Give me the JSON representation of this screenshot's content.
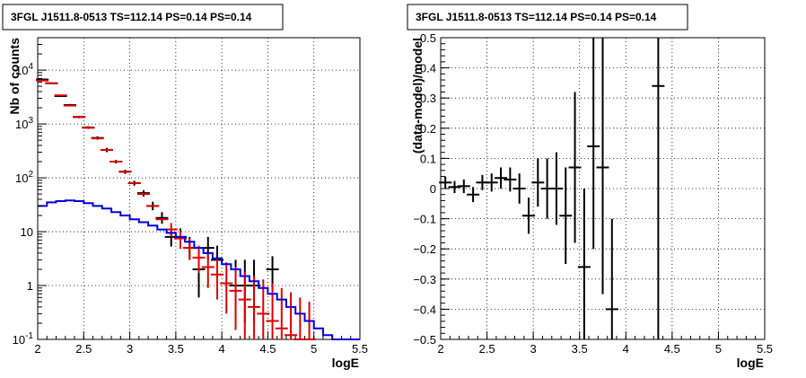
{
  "chart_data": [
    {
      "type": "scatter",
      "title": "3FGL J1511.8-0513 TS=112.14 PS=0.14 PS=0.14",
      "xlabel": "logE",
      "ylabel": "Nb of counts",
      "xlim": [
        2,
        5.5
      ],
      "ylim": [
        0.1,
        40000
      ],
      "ylog": true,
      "grid": true,
      "x_ticks": [
        "2",
        "2.5",
        "3",
        "3.5",
        "4",
        "4.5",
        "5",
        "5.5"
      ],
      "y_ticks": [
        {
          "value": 0.1,
          "label": "10",
          "exp": "-1"
        },
        {
          "value": 1,
          "label": "1",
          "exp": ""
        },
        {
          "value": 10,
          "label": "10",
          "exp": ""
        },
        {
          "value": 100,
          "label": "10",
          "exp": "2"
        },
        {
          "value": 1000,
          "label": "10",
          "exp": "3"
        },
        {
          "value": 10000,
          "label": "10",
          "exp": "4"
        }
      ],
      "series": [
        {
          "kind": "points",
          "color": "#000000",
          "points": [
            {
              "x": 2.05,
              "y": 6700,
              "lo": 6550,
              "hi": 6850
            },
            {
              "x": 2.15,
              "y": 5700,
              "lo": 5560,
              "hi": 5850
            },
            {
              "x": 2.25,
              "y": 3300,
              "lo": 3190,
              "hi": 3420
            },
            {
              "x": 2.35,
              "y": 2250,
              "lo": 2160,
              "hi": 2350
            },
            {
              "x": 2.45,
              "y": 1350,
              "lo": 1280,
              "hi": 1420
            },
            {
              "x": 2.55,
              "y": 860,
              "lo": 810,
              "hi": 910
            },
            {
              "x": 2.65,
              "y": 550,
              "lo": 510,
              "hi": 590
            },
            {
              "x": 2.75,
              "y": 330,
              "lo": 300,
              "hi": 360
            },
            {
              "x": 2.85,
              "y": 200,
              "lo": 185,
              "hi": 215
            },
            {
              "x": 2.95,
              "y": 130,
              "lo": 119,
              "hi": 141
            },
            {
              "x": 3.05,
              "y": 80,
              "lo": 72,
              "hi": 88
            },
            {
              "x": 3.15,
              "y": 52,
              "lo": 45,
              "hi": 59
            },
            {
              "x": 3.25,
              "y": 30,
              "lo": 25,
              "hi": 36
            },
            {
              "x": 3.35,
              "y": 18,
              "lo": 14,
              "hi": 23
            },
            {
              "x": 3.45,
              "y": 8,
              "lo": 5.3,
              "hi": 11.5
            },
            {
              "x": 3.55,
              "y": 8,
              "lo": 5.3,
              "hi": 11.5
            },
            {
              "x": 3.65,
              "y": 5,
              "lo": 3,
              "hi": 8
            },
            {
              "x": 3.75,
              "y": 2,
              "lo": 0.6,
              "hi": 5
            },
            {
              "x": 3.85,
              "y": 5,
              "lo": 3,
              "hi": 8
            },
            {
              "x": 3.95,
              "y": 3,
              "lo": 1.5,
              "hi": 5.5
            },
            {
              "x": 4.15,
              "y": 1,
              "lo": 0.2,
              "hi": 3
            },
            {
              "x": 4.25,
              "y": 1,
              "lo": 0.2,
              "hi": 3
            },
            {
              "x": 4.35,
              "y": 1,
              "lo": 0.2,
              "hi": 3
            },
            {
              "x": 4.55,
              "y": 2,
              "lo": 0.8,
              "hi": 3.5
            }
          ]
        },
        {
          "kind": "points",
          "color": "#dd0000",
          "points": [
            {
              "x": 2.05,
              "y": 6400
            },
            {
              "x": 2.15,
              "y": 5700
            },
            {
              "x": 2.25,
              "y": 3400
            },
            {
              "x": 2.35,
              "y": 2200
            },
            {
              "x": 2.45,
              "y": 1350
            },
            {
              "x": 2.55,
              "y": 850
            },
            {
              "x": 2.65,
              "y": 540
            },
            {
              "x": 2.75,
              "y": 330
            },
            {
              "x": 2.85,
              "y": 200
            },
            {
              "x": 2.95,
              "y": 130
            },
            {
              "x": 3.05,
              "y": 80
            },
            {
              "x": 3.15,
              "y": 50
            },
            {
              "x": 3.25,
              "y": 30
            },
            {
              "x": 3.35,
              "y": 17
            },
            {
              "x": 3.45,
              "y": 11,
              "lo": 8,
              "hi": 14.5
            },
            {
              "x": 3.55,
              "y": 7.5,
              "lo": 4.8,
              "hi": 10.5
            },
            {
              "x": 3.65,
              "y": 5,
              "lo": 3,
              "hi": 7.5
            },
            {
              "x": 3.75,
              "y": 3.3,
              "lo": 1.7,
              "hi": 5.5
            },
            {
              "x": 3.85,
              "y": 2.2,
              "lo": 0.9,
              "hi": 4
            },
            {
              "x": 3.95,
              "y": 1.6,
              "lo": 0.55,
              "hi": 3.2
            },
            {
              "x": 4.05,
              "y": 1.1,
              "lo": 0.3,
              "hi": 2.7
            },
            {
              "x": 4.15,
              "y": 0.8,
              "lo": 0.15,
              "hi": 2.2
            },
            {
              "x": 4.25,
              "y": 0.55,
              "lo": 0.1,
              "hi": 1.8
            },
            {
              "x": 4.35,
              "y": 0.4,
              "lo": 0.1,
              "hi": 1.5
            },
            {
              "x": 4.45,
              "y": 0.3,
              "lo": 0.1,
              "hi": 1.3
            },
            {
              "x": 4.55,
              "y": 0.22,
              "lo": 0.1,
              "hi": 1.1
            },
            {
              "x": 4.65,
              "y": 0.16,
              "lo": 0.1,
              "hi": 0.9
            },
            {
              "x": 4.75,
              "y": 0.12,
              "lo": 0.1,
              "hi": 0.75
            },
            {
              "x": 4.85,
              "y": 0.1,
              "lo": 0.1,
              "hi": 0.6
            },
            {
              "x": 4.95,
              "y": 0.1,
              "lo": 0.1,
              "hi": 0.5
            }
          ]
        },
        {
          "kind": "step",
          "color": "#0000dd",
          "edges": [
            2.0,
            2.1,
            2.2,
            2.3,
            2.4,
            2.5,
            2.6,
            2.7,
            2.8,
            2.9,
            3.0,
            3.1,
            3.2,
            3.3,
            3.4,
            3.5,
            3.6,
            3.7,
            3.8,
            3.9,
            4.0,
            4.1,
            4.2,
            4.3,
            4.4,
            4.5,
            4.6,
            4.7,
            4.8,
            4.9,
            5.0,
            5.1,
            5.2,
            5.3,
            5.4,
            5.5
          ],
          "values": [
            30,
            35,
            37,
            38,
            37,
            34,
            30,
            27,
            23,
            20,
            17,
            15,
            13,
            11,
            9.5,
            8,
            6.5,
            5,
            4,
            3.2,
            2.5,
            2,
            1.5,
            1.2,
            0.9,
            0.7,
            0.55,
            0.4,
            0.3,
            0.22,
            0.16,
            0.12,
            0.1,
            0.1,
            0.1
          ]
        }
      ]
    },
    {
      "type": "scatter",
      "title": "3FGL J1511.8-0513 TS=112.14 PS=0.14 PS=0.14",
      "xlabel": "logE",
      "ylabel": "(data-model)/model",
      "xlim": [
        2,
        5.5
      ],
      "ylim": [
        -0.5,
        0.5
      ],
      "grid": true,
      "x_ticks": [
        "2",
        "2.5",
        "3",
        "3.5",
        "4",
        "4.5",
        "5",
        "5.5"
      ],
      "y_ticks": [
        "-0.5",
        "-0.4",
        "-0.3",
        "-0.2",
        "-0.1",
        "0",
        "0.1",
        "0.2",
        "0.3",
        "0.4",
        "0.5"
      ],
      "series": [
        {
          "kind": "points",
          "color": "#000000",
          "points": [
            {
              "x": 2.05,
              "y": 0.02,
              "lo": 0.0,
              "hi": 0.04
            },
            {
              "x": 2.15,
              "y": 0.005,
              "lo": -0.015,
              "hi": 0.025
            },
            {
              "x": 2.25,
              "y": 0.008,
              "lo": -0.015,
              "hi": 0.03
            },
            {
              "x": 2.35,
              "y": -0.02,
              "lo": -0.045,
              "hi": 0.005
            },
            {
              "x": 2.45,
              "y": 0.02,
              "lo": -0.005,
              "hi": 0.045
            },
            {
              "x": 2.55,
              "y": 0.02,
              "lo": -0.01,
              "hi": 0.05
            },
            {
              "x": 2.65,
              "y": 0.035,
              "lo": 0.0,
              "hi": 0.07
            },
            {
              "x": 2.75,
              "y": 0.03,
              "lo": -0.01,
              "hi": 0.07
            },
            {
              "x": 2.85,
              "y": 0.0,
              "lo": -0.05,
              "hi": 0.05
            },
            {
              "x": 2.95,
              "y": -0.09,
              "lo": -0.15,
              "hi": -0.03
            },
            {
              "x": 3.05,
              "y": 0.02,
              "lo": -0.06,
              "hi": 0.1
            },
            {
              "x": 3.15,
              "y": 0.0,
              "lo": -0.1,
              "hi": 0.1
            },
            {
              "x": 3.25,
              "y": 0.0,
              "lo": -0.12,
              "hi": 0.12
            },
            {
              "x": 3.35,
              "y": -0.09,
              "lo": -0.25,
              "hi": 0.07
            },
            {
              "x": 3.45,
              "y": 0.07,
              "lo": -0.18,
              "hi": 0.32
            },
            {
              "x": 3.55,
              "y": -0.26,
              "lo": -0.5,
              "hi": 0.0
            },
            {
              "x": 3.65,
              "y": 0.14,
              "lo": -0.2,
              "hi": 0.5
            },
            {
              "x": 3.75,
              "y": 0.07,
              "lo": -0.35,
              "hi": 0.5
            },
            {
              "x": 3.85,
              "y": -0.4,
              "lo": -0.5,
              "hi": -0.1
            },
            {
              "x": 4.35,
              "y": 0.34,
              "lo": -0.5,
              "hi": 0.5
            }
          ]
        }
      ]
    }
  ]
}
